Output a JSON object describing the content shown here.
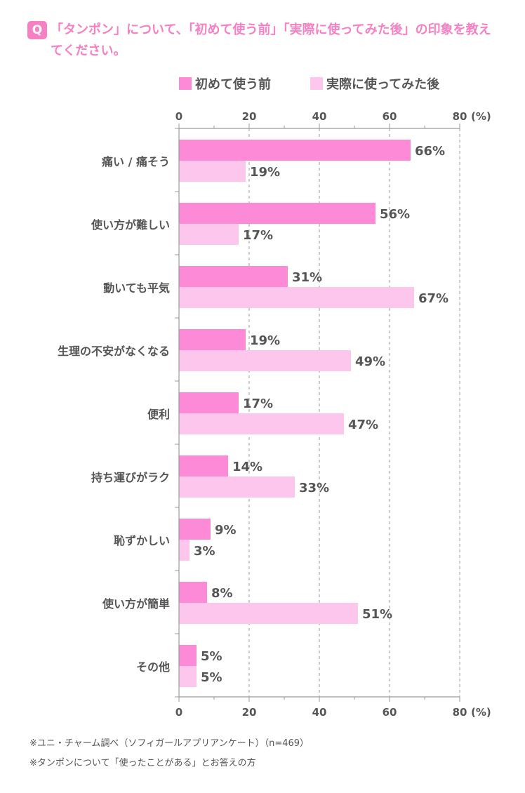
{
  "question": {
    "badge": "Q",
    "text": "「タンポン」について、「初めて使う前」「実際に使ってみた後」の印象を教えてください。"
  },
  "colors": {
    "accent": "#f77fc4",
    "series_first": "#fc8ad7",
    "series_after": "#fdc6ec",
    "text": "#555555",
    "grid": "#9a9a9a"
  },
  "chart_data": {
    "type": "bar",
    "orientation": "horizontal",
    "categories": [
      "痛い / 痛そう",
      "使い方が難しい",
      "動いても平気",
      "生理の不安がなくなる",
      "便利",
      "持ち運びがラク",
      "恥ずかしい",
      "使い方が簡単",
      "その他"
    ],
    "series": [
      {
        "name": "初めて使う前",
        "values": [
          66,
          56,
          31,
          19,
          17,
          14,
          9,
          8,
          5
        ]
      },
      {
        "name": "実際に使ってみた後",
        "values": [
          19,
          17,
          67,
          49,
          47,
          33,
          3,
          51,
          5
        ]
      }
    ],
    "value_suffix": "%",
    "xlim": [
      0,
      80
    ],
    "xticks": [
      0,
      20,
      40,
      60,
      80
    ],
    "xtick_labels": [
      "0",
      "20",
      "40",
      "60",
      "80"
    ],
    "unit_label": "(%)",
    "grid": true,
    "legend_position": "top"
  },
  "footnotes": [
    "※ユニ・チャーム調べ（ソフィガールアプリアンケート）（n=469）",
    "※タンポンについて「使ったことがある」とお答えの方"
  ]
}
